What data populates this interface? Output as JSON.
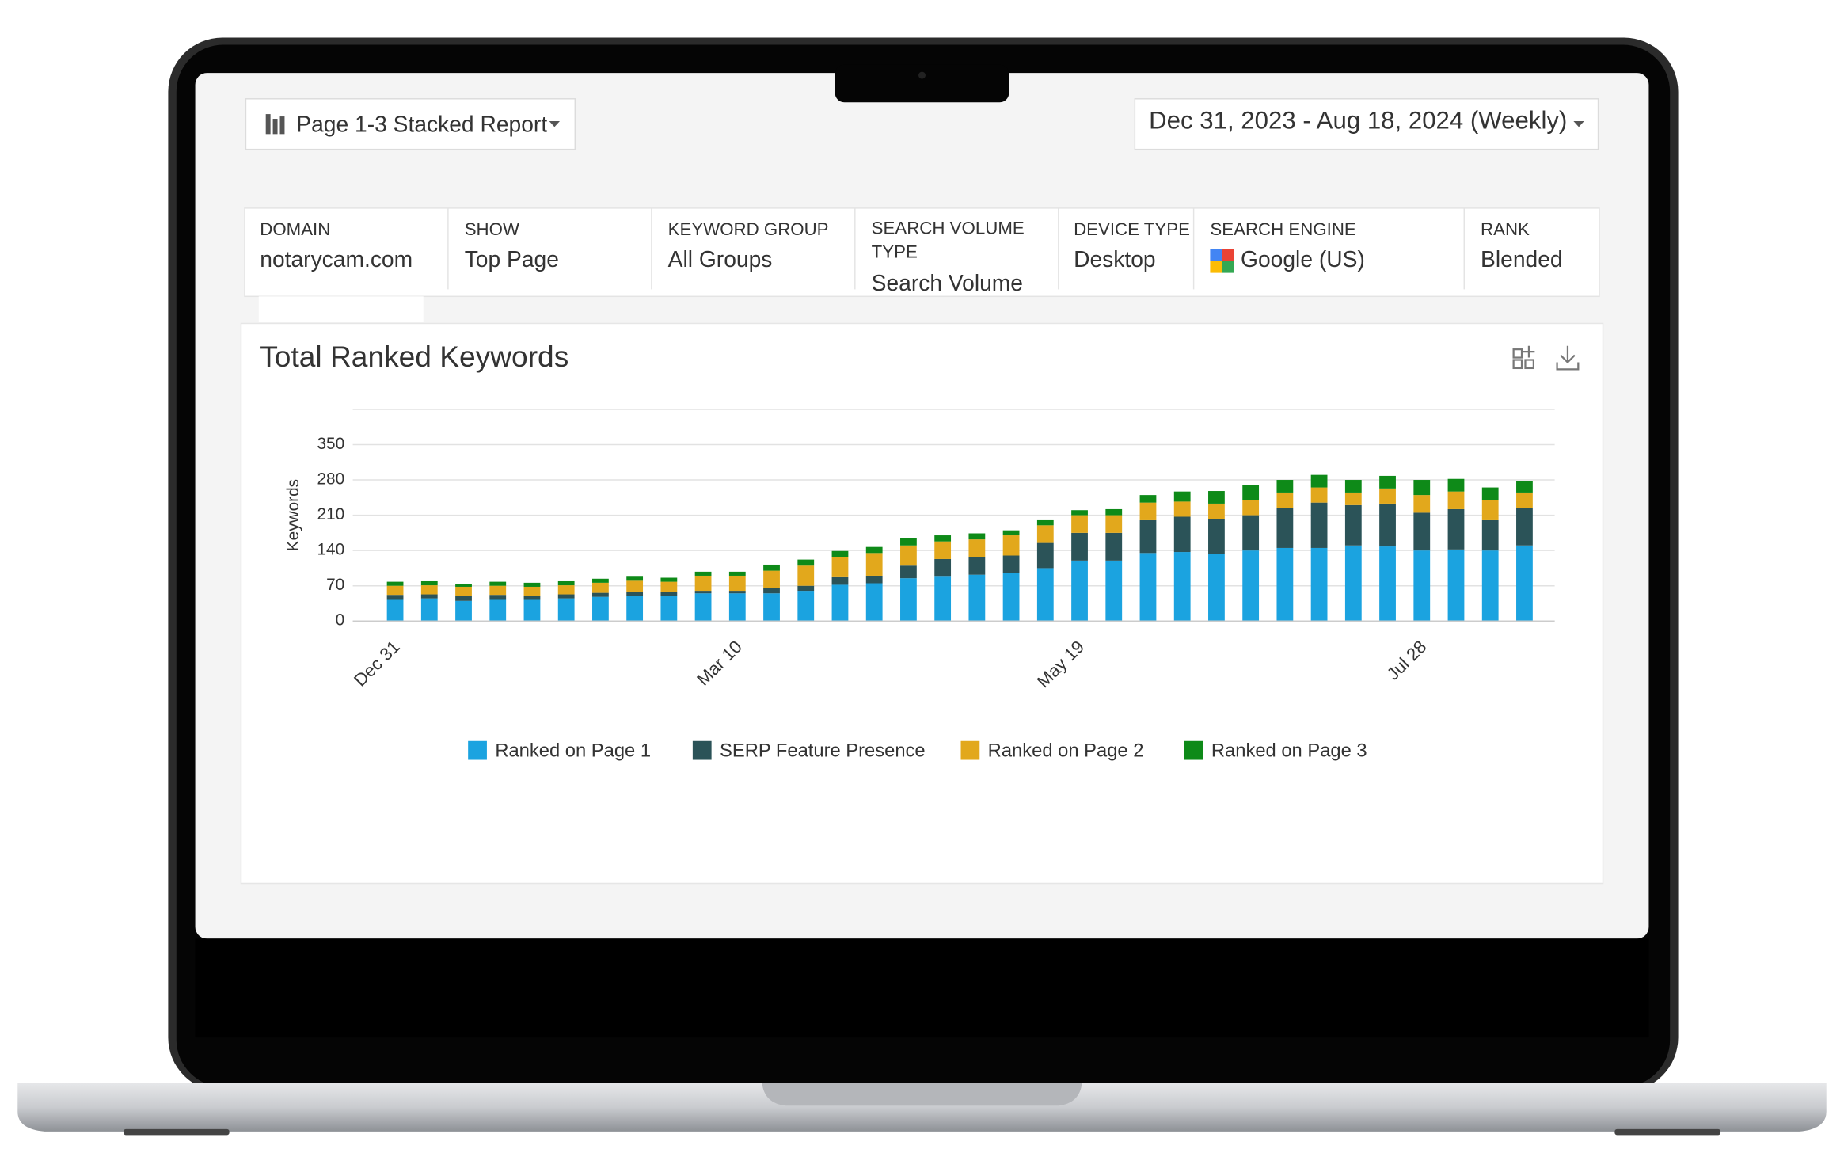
{
  "header": {
    "report_selector": "Page 1-3 Stacked Report",
    "date_range": "Dec 31, 2023 - Aug 18, 2024 (Weekly)"
  },
  "filters": [
    {
      "label": "DOMAIN",
      "value": "notarycam.com"
    },
    {
      "label": "SHOW",
      "value": "Top Page"
    },
    {
      "label": "KEYWORD GROUP",
      "value": "All Groups"
    },
    {
      "label": "SEARCH VOLUME TYPE",
      "value": "Search Volume"
    },
    {
      "label": "DEVICE TYPE",
      "value": "Desktop"
    },
    {
      "label": "SEARCH ENGINE",
      "value": "Google (US)"
    },
    {
      "label": "RANK",
      "value": "Blended"
    }
  ],
  "chart_data": {
    "type": "stacked_bar",
    "title": "Total Ranked Keywords",
    "y_label": "Keywords",
    "categories": [
      "Dec 31",
      null,
      null,
      null,
      null,
      null,
      null,
      null,
      null,
      null,
      "Mar 10",
      null,
      null,
      null,
      null,
      null,
      null,
      null,
      null,
      null,
      "May 19",
      null,
      null,
      null,
      null,
      null,
      null,
      null,
      null,
      null,
      "Jul 28",
      null,
      null,
      null
    ],
    "ylim": [
      0,
      420
    ],
    "yticks": [
      0,
      70,
      140,
      210,
      280,
      350
    ],
    "grid": true,
    "series": [
      {
        "name": "Ranked on Page 1",
        "color": "#1ba3e0",
        "values": [
          42,
          45,
          40,
          42,
          42,
          45,
          48,
          50,
          50,
          55,
          55,
          55,
          60,
          72,
          75,
          85,
          88,
          92,
          95,
          105,
          120,
          120,
          135,
          137,
          133,
          140,
          145,
          145,
          150,
          148,
          140,
          142,
          140,
          150
        ]
      },
      {
        "name": "SERP Feature Presence",
        "color": "#2b5358",
        "values": [
          10,
          8,
          10,
          10,
          8,
          8,
          8,
          8,
          8,
          5,
          5,
          10,
          10,
          15,
          15,
          25,
          35,
          35,
          35,
          50,
          55,
          55,
          65,
          70,
          70,
          70,
          80,
          90,
          80,
          85,
          75,
          80,
          60,
          75
        ]
      },
      {
        "name": "Ranked on Page 2",
        "color": "#e2a81c",
        "values": [
          18,
          18,
          18,
          18,
          18,
          18,
          20,
          22,
          20,
          30,
          30,
          35,
          40,
          40,
          45,
          40,
          35,
          35,
          40,
          35,
          35,
          35,
          35,
          30,
          30,
          30,
          30,
          30,
          25,
          30,
          35,
          35,
          40,
          30
        ]
      },
      {
        "name": "Ranked on Page 3",
        "color": "#0e8a18",
        "values": [
          8,
          8,
          5,
          8,
          8,
          8,
          8,
          8,
          8,
          8,
          8,
          12,
          12,
          12,
          12,
          15,
          12,
          12,
          10,
          10,
          10,
          12,
          15,
          20,
          25,
          30,
          25,
          25,
          25,
          25,
          30,
          25,
          25,
          22
        ]
      }
    ]
  }
}
